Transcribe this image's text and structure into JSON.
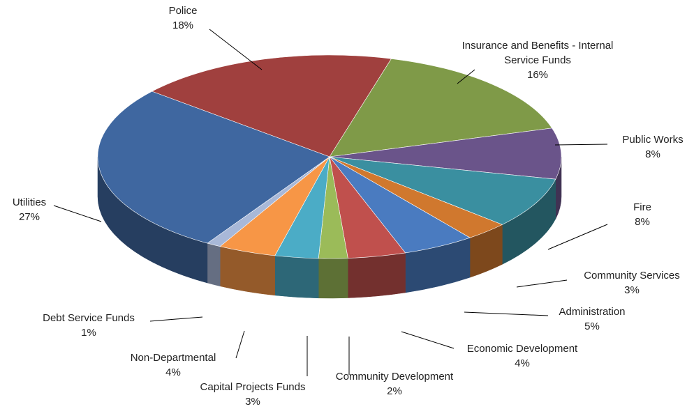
{
  "chart_data": {
    "type": "pie3d",
    "categories": [
      "Police",
      "Insurance and Benefits - Internal Service Funds",
      "Public Works",
      "Fire",
      "Community Services",
      "Administration",
      "Economic Development",
      "Community Development",
      "Capital Projects Funds",
      "Non-Departmental",
      "Debt Service Funds",
      "Utilities"
    ],
    "values": [
      18,
      16,
      8,
      8,
      3,
      5,
      4,
      2,
      3,
      4,
      1,
      27
    ],
    "value_labels": [
      "18%",
      "16%",
      "8%",
      "8%",
      "3%",
      "5%",
      "4%",
      "2%",
      "3%",
      "4%",
      "1%",
      "27%"
    ],
    "colors": [
      "#a0403e",
      "#7f9a48",
      "#6a548a",
      "#3a8fa0",
      "#d0782e",
      "#4a7bc0",
      "#c0504d",
      "#9bbb59",
      "#4bacc6",
      "#f79646",
      "#a8b8d8",
      "#3f67a0"
    ]
  }
}
